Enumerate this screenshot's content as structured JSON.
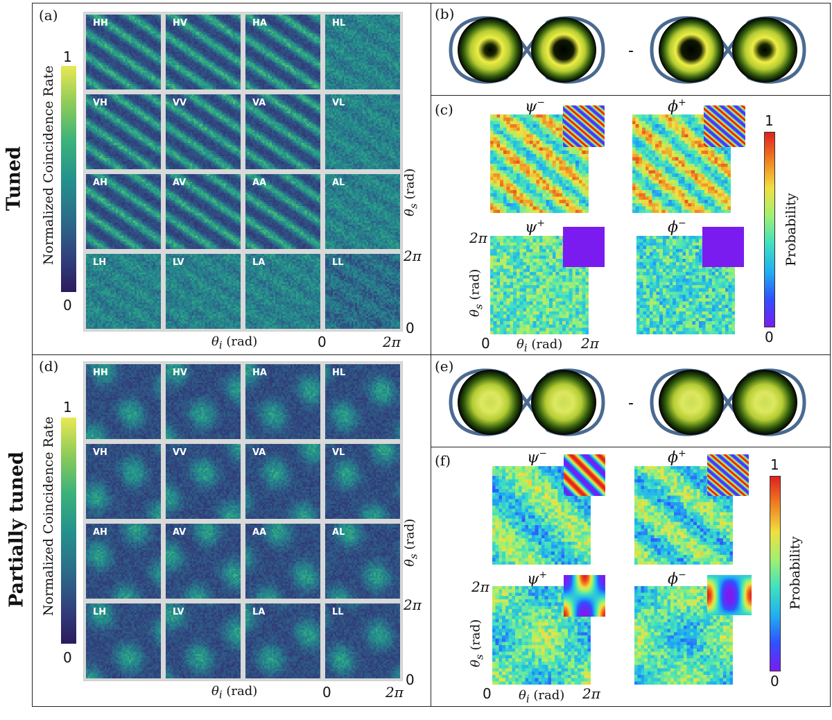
{
  "rows": {
    "tuned": "Tuned",
    "partially_tuned": "Partially tuned"
  },
  "panels": {
    "a": "(a)",
    "b": "(b)",
    "c": "(c)",
    "d": "(d)",
    "e": "(e)",
    "f": "(f)"
  },
  "colorbar_left": {
    "title": "Normalized Coincidence Rate",
    "max": "1",
    "min": "0"
  },
  "colorbar_right": {
    "title": "Probability",
    "max": "1",
    "min": "0"
  },
  "grid_labels": [
    "HH",
    "HV",
    "HA",
    "HL",
    "VH",
    "VV",
    "VA",
    "VL",
    "AH",
    "AV",
    "AA",
    "AL",
    "LH",
    "LV",
    "LA",
    "LL"
  ],
  "axes": {
    "theta_i": "θi (rad)",
    "theta_i_main": "θ",
    "theta_i_sub": "i",
    "theta_s_main": "θ",
    "theta_s_sub": "s",
    "rad": "(rad)",
    "zero": "0",
    "two_pi": "2π"
  },
  "states": {
    "psi_minus": "ψ",
    "phi_plus": "ϕ",
    "psi_plus": "ψ",
    "phi_minus": "ϕ",
    "minus": "−",
    "plus": "+"
  },
  "diagram": {
    "dash": "-"
  },
  "colors": {
    "viridis_dark": "#2b1b5e",
    "viridis_bright": "#e8e854",
    "purple_block": "#7a1cf0",
    "ring_blue": "#4a6a90"
  }
}
